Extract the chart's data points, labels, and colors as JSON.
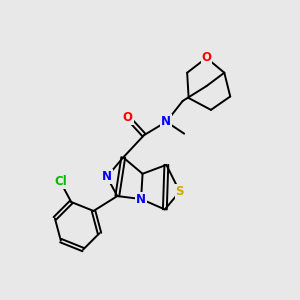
{
  "bg_color": "#e8e8e8",
  "atom_colors": {
    "N": "#0000ff",
    "O": "#ff0000",
    "S": "#ccaa00",
    "Cl": "#00bb00",
    "C": "#000000"
  }
}
